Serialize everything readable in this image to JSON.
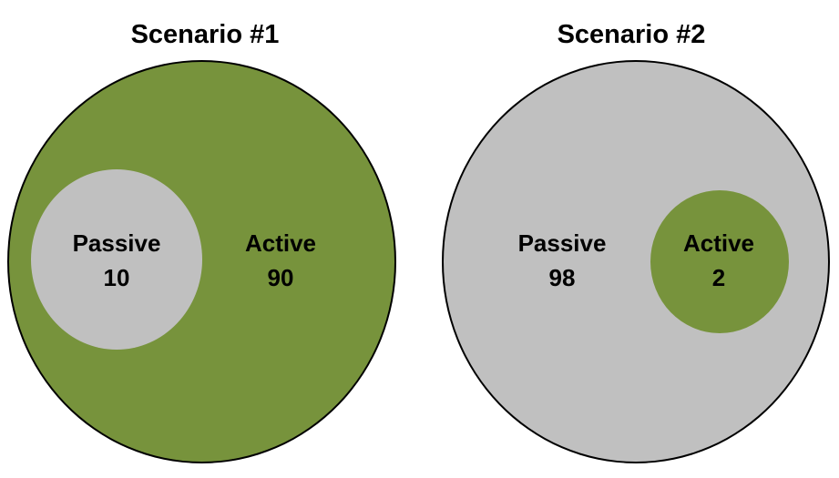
{
  "scenarios": [
    {
      "title": "Scenario #1",
      "outer": {
        "label": "Active",
        "value": "90",
        "color": "#77933c"
      },
      "inner": {
        "label": "Passive",
        "value": "10",
        "color": "#c0c0c0"
      }
    },
    {
      "title": "Scenario #2",
      "outer": {
        "label": "Passive",
        "value": "98",
        "color": "#c0c0c0"
      },
      "inner": {
        "label": "Active",
        "value": "2",
        "color": "#77933c"
      }
    }
  ]
}
